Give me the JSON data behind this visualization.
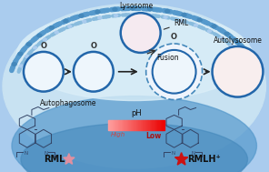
{
  "bg_outer": "#aaccee",
  "bg_light": "#cce4f5",
  "bg_bottom_dark": "#4499cc",
  "membrane_outer": "#5599cc",
  "membrane_inner": "#88bbdd",
  "lysosome_label": "Lysosome",
  "rml_label": "RML",
  "autophagosome_label": "Autophagosome",
  "fusion_label": "Fusion",
  "autolysosome_label": "Autolysosome",
  "ph_label": "pH",
  "high_label": "High",
  "low_label": "Low",
  "rml_text": "RML",
  "rmlh_text": "RMLH⁺",
  "circle_color": "#2266aa",
  "dashed_circle_color": "#4488bb",
  "arrow_color": "#222222",
  "pink_star": "#e090a0",
  "red_star": "#cc1111",
  "organelle_dark": "#774433",
  "organelle_gray": "#aa8877",
  "organelle_green": "#33aa33",
  "orange_blob": "#ee7733",
  "lyso_pink": "#cc6677",
  "lyso_med": "#dd99aa"
}
